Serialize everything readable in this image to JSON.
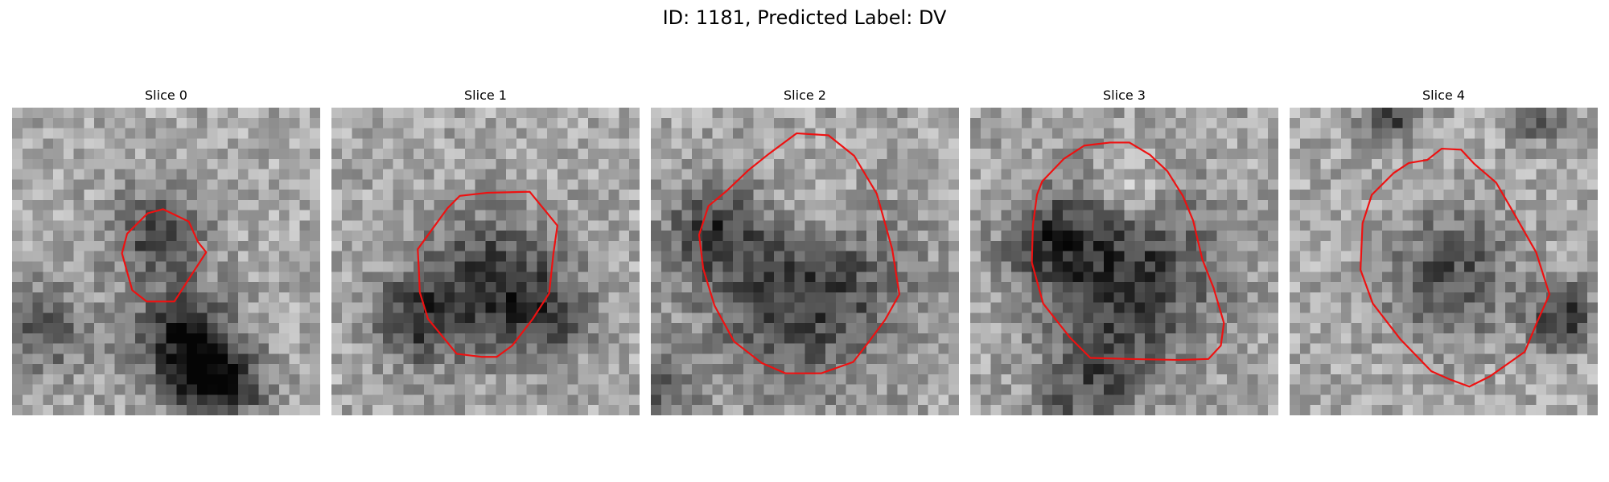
{
  "figure": {
    "title": "ID: 1181, Predicted Label: DV"
  },
  "slices": [
    {
      "title": "Slice 0",
      "contour": [
        [
          13.2,
          10.3
        ],
        [
          14.7,
          9.9
        ],
        [
          17.2,
          11.1
        ],
        [
          18.1,
          13.1
        ],
        [
          18.9,
          14.1
        ],
        [
          17.6,
          16.1
        ],
        [
          15.8,
          18.9
        ],
        [
          13.1,
          18.9
        ],
        [
          11.7,
          17.8
        ],
        [
          10.7,
          14.2
        ],
        [
          11.2,
          12.3
        ]
      ],
      "dark_spots": [
        [
          14.2,
          12.5,
          0.26,
          4.5
        ],
        [
          17.0,
          22.6,
          0.33,
          5.0
        ],
        [
          3.2,
          21.5,
          0.18,
          5.0
        ],
        [
          19.3,
          26.8,
          0.3,
          4.2
        ],
        [
          22.5,
          27.0,
          0.12,
          3.2
        ]
      ]
    },
    {
      "title": "Slice 1",
      "contour": [
        [
          8.4,
          13.8
        ],
        [
          11.3,
          9.8
        ],
        [
          12.5,
          8.6
        ],
        [
          15.2,
          8.3
        ],
        [
          19.3,
          8.2
        ],
        [
          22.0,
          11.5
        ],
        [
          21.6,
          14.3
        ],
        [
          21.2,
          18.1
        ],
        [
          19.6,
          20.6
        ],
        [
          17.6,
          23.2
        ],
        [
          16.1,
          24.3
        ],
        [
          14.6,
          24.3
        ],
        [
          12.2,
          24.0
        ],
        [
          9.4,
          20.6
        ],
        [
          8.6,
          18.0
        ],
        [
          8.5,
          15.6
        ]
      ],
      "dark_spots": [
        [
          15.4,
          17.1,
          0.29,
          6.7
        ],
        [
          8.0,
          20.8,
          0.25,
          4.4
        ],
        [
          21.3,
          20.4,
          0.17,
          4.5
        ]
      ]
    },
    {
      "title": "Slice 2",
      "contour": [
        [
          7.4,
          8.1
        ],
        [
          9.5,
          6.1
        ],
        [
          11.5,
          4.5
        ],
        [
          14.2,
          2.5
        ],
        [
          17.3,
          2.7
        ],
        [
          19.8,
          4.7
        ],
        [
          22.0,
          8.4
        ],
        [
          23.5,
          13.8
        ],
        [
          24.2,
          18.2
        ],
        [
          22.8,
          20.7
        ],
        [
          21.1,
          23.0
        ],
        [
          19.7,
          24.8
        ],
        [
          16.6,
          25.9
        ],
        [
          13.1,
          25.9
        ],
        [
          10.8,
          24.9
        ],
        [
          8.1,
          22.8
        ],
        [
          6.2,
          19.3
        ],
        [
          5.1,
          15.7
        ],
        [
          4.7,
          12.4
        ],
        [
          5.6,
          9.6
        ]
      ],
      "bright_spots": [
        [
          15.8,
          10.0,
          0.22,
          5.5
        ]
      ],
      "dark_spots": [
        [
          14.8,
          17.1,
          0.3,
          10.0
        ],
        [
          5.6,
          12.1,
          0.2,
          4.3
        ],
        [
          0.7,
          27.2,
          0.22,
          3.3
        ]
      ]
    },
    {
      "title": "Slice 3",
      "contour": [
        [
          7.0,
          7.2
        ],
        [
          9.1,
          5.0
        ],
        [
          11.1,
          3.7
        ],
        [
          13.6,
          3.4
        ],
        [
          15.5,
          3.4
        ],
        [
          17.5,
          4.6
        ],
        [
          19.2,
          6.2
        ],
        [
          20.7,
          8.6
        ],
        [
          21.7,
          11.0
        ],
        [
          22.6,
          14.8
        ],
        [
          23.7,
          17.6
        ],
        [
          24.7,
          21.0
        ],
        [
          24.4,
          23.2
        ],
        [
          23.2,
          24.5
        ],
        [
          20.3,
          24.6
        ],
        [
          15.4,
          24.5
        ],
        [
          11.7,
          24.4
        ],
        [
          9.7,
          22.4
        ],
        [
          7.1,
          19.1
        ],
        [
          6.0,
          15.1
        ],
        [
          6.1,
          11.5
        ],
        [
          6.5,
          8.5
        ]
      ],
      "bright_spots": [
        [
          15.9,
          8.3,
          0.22,
          4.0
        ]
      ],
      "dark_spots": [
        [
          14.9,
          16.1,
          0.3,
          9.5
        ],
        [
          7.5,
          12.9,
          0.18,
          4.0
        ],
        [
          13.0,
          26.5,
          0.16,
          4.2
        ],
        [
          8.5,
          29.0,
          0.12,
          3.0
        ]
      ]
    },
    {
      "title": "Slice 4",
      "contour": [
        [
          8.0,
          8.5
        ],
        [
          10.1,
          6.4
        ],
        [
          11.6,
          5.4
        ],
        [
          13.4,
          5.1
        ],
        [
          14.8,
          4.0
        ],
        [
          16.7,
          4.1
        ],
        [
          18.0,
          5.5
        ],
        [
          20.1,
          7.3
        ],
        [
          21.9,
          10.4
        ],
        [
          24.0,
          14.1
        ],
        [
          25.3,
          18.2
        ],
        [
          24.1,
          20.9
        ],
        [
          22.9,
          23.8
        ],
        [
          19.5,
          26.2
        ],
        [
          17.5,
          27.2
        ],
        [
          15.6,
          26.5
        ],
        [
          13.8,
          25.7
        ],
        [
          10.8,
          22.6
        ],
        [
          8.1,
          19.1
        ],
        [
          6.9,
          15.8
        ],
        [
          7.1,
          11.3
        ]
      ],
      "dark_spots": [
        [
          15.7,
          16.5,
          0.22,
          6.5
        ],
        [
          10.0,
          0.8,
          0.24,
          3.0
        ],
        [
          24.3,
          1.2,
          0.18,
          2.5
        ],
        [
          26.5,
          20.3,
          0.28,
          3.3
        ]
      ]
    }
  ]
}
